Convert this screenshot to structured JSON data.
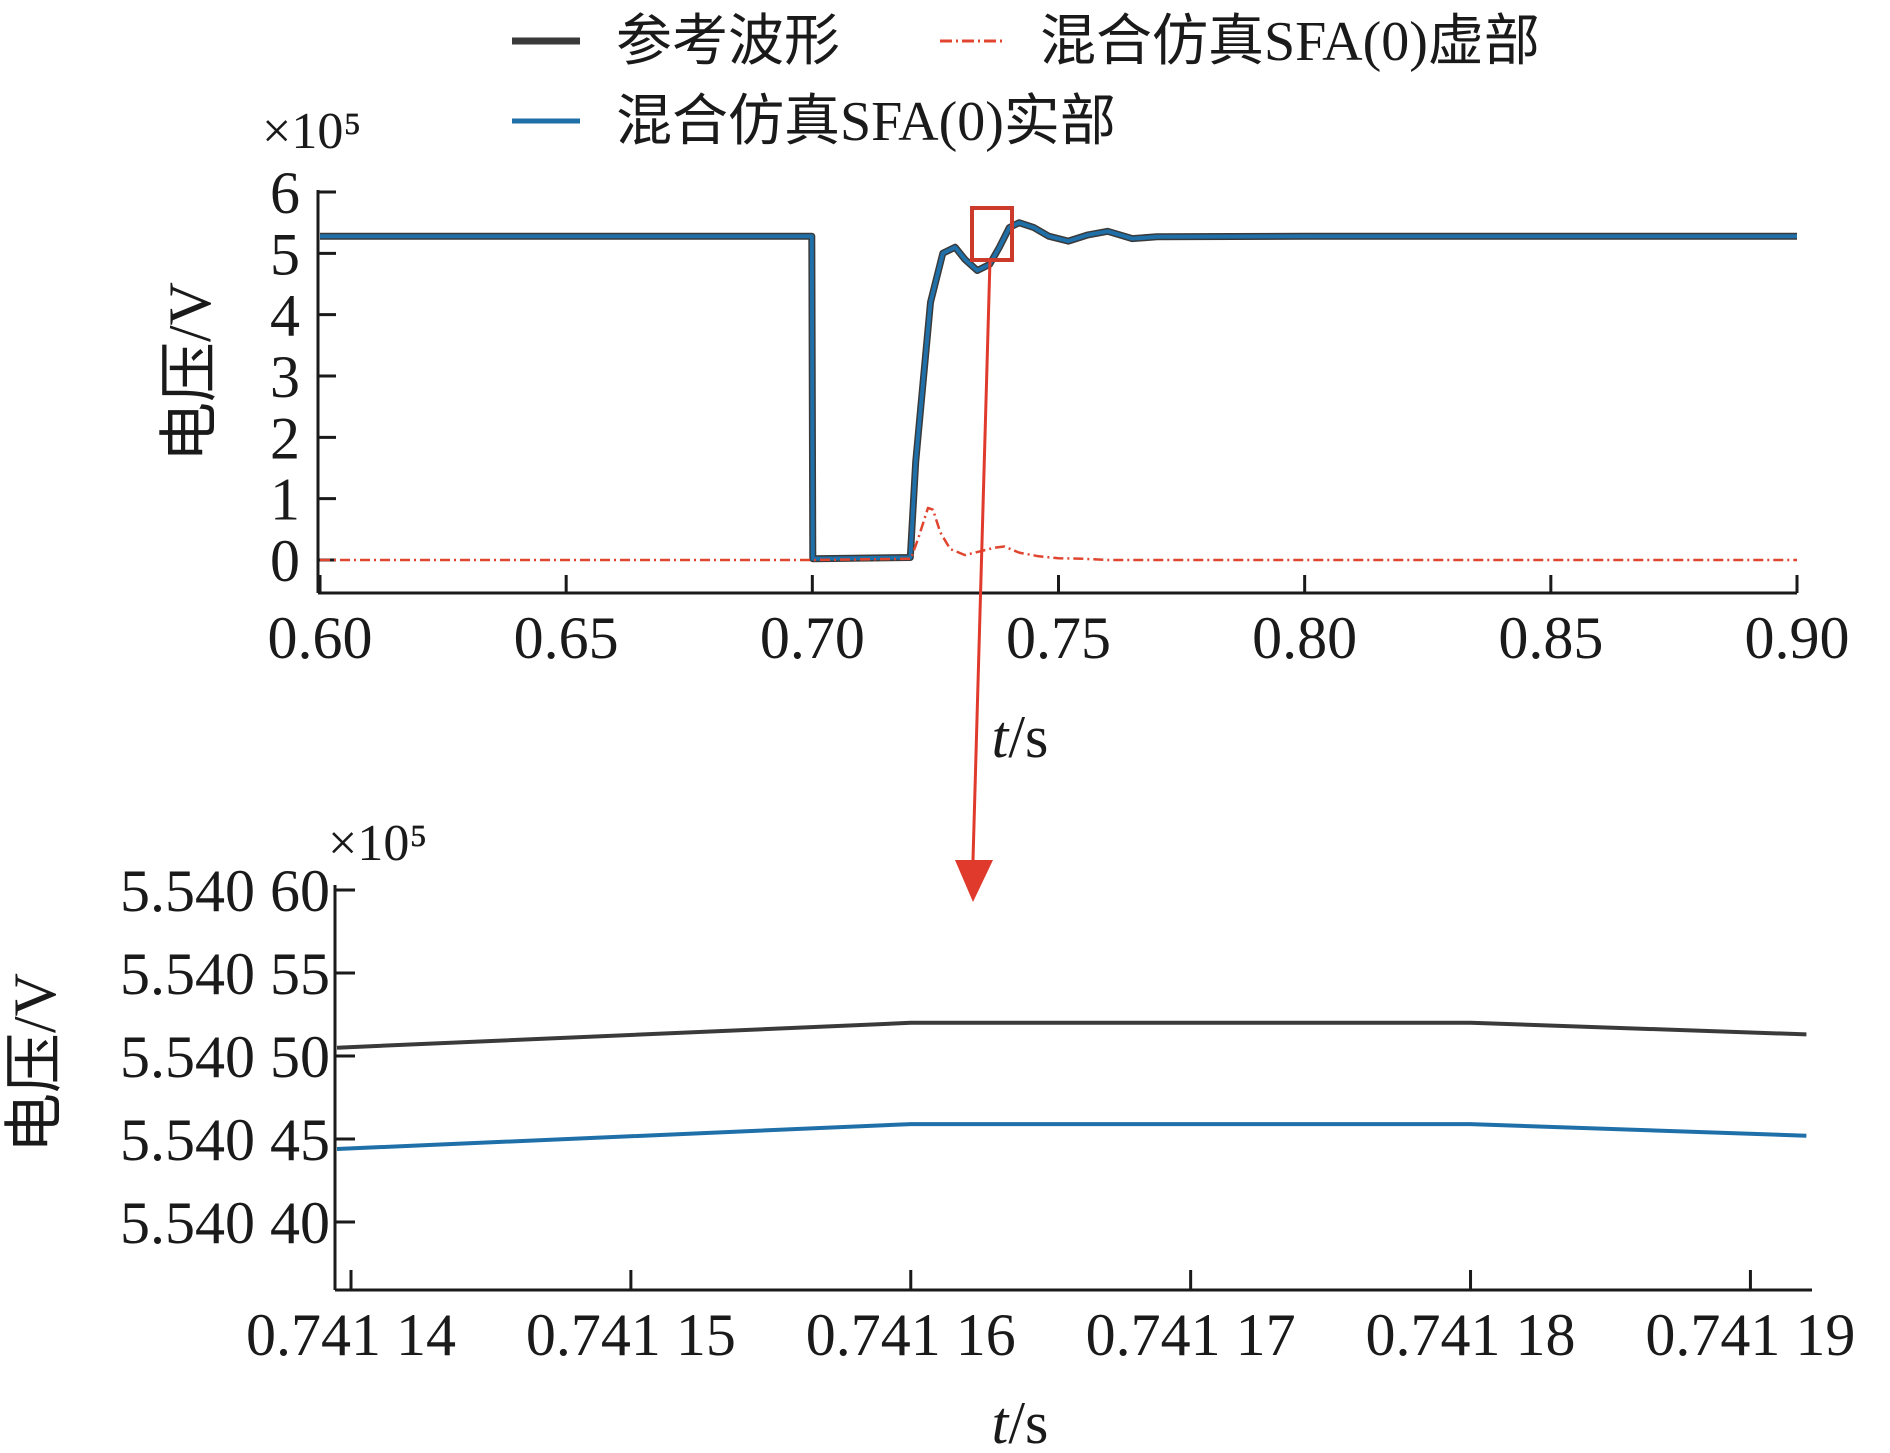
{
  "legend": {
    "entries": [
      {
        "label": "参考波形",
        "color": "#3a3a3a",
        "style": "solid"
      },
      {
        "label": "混合仿真SFA(0)虚部",
        "color": "#e0462f",
        "style": "dashdot"
      },
      {
        "label": "混合仿真SFA(0)实部",
        "color": "#1f6fa8",
        "style": "solid"
      }
    ]
  },
  "colors": {
    "reference": "#3a3a3a",
    "imag": "#e0462f",
    "real": "#1f6fa8",
    "zoom_marker": "#cc3a2c",
    "arrow": "#e03a2c"
  },
  "chart_data": [
    {
      "type": "line",
      "panel": "top",
      "title": "",
      "xlabel": "t/s",
      "ylabel": "电压/V",
      "y_multiplier": "×10⁵",
      "xlim": [
        0.6,
        0.9
      ],
      "ylim": [
        -0.5,
        6
      ],
      "xticks": [
        "0.60",
        "0.65",
        "0.70",
        "0.75",
        "0.80",
        "0.85",
        "0.90"
      ],
      "yticks": [
        "0",
        "1",
        "2",
        "3",
        "4",
        "5",
        "6"
      ],
      "grid": false,
      "legend_position": "top",
      "series": [
        {
          "name": "参考波形",
          "color": "#3a3a3a",
          "x": [
            0.6,
            0.6999,
            0.7001,
            0.7199,
            0.721,
            0.724,
            0.7265,
            0.729,
            0.731,
            0.7335,
            0.736,
            0.738,
            0.74,
            0.742,
            0.745,
            0.748,
            0.752,
            0.756,
            0.76,
            0.765,
            0.77,
            0.8,
            0.85,
            0.9
          ],
          "y": [
            5.28,
            5.28,
            0.02,
            0.04,
            1.6,
            4.2,
            5.0,
            5.1,
            4.9,
            4.72,
            4.82,
            5.1,
            5.42,
            5.5,
            5.42,
            5.28,
            5.2,
            5.3,
            5.36,
            5.24,
            5.27,
            5.28,
            5.28,
            5.28
          ]
        },
        {
          "name": "混合仿真SFA(0)实部",
          "color": "#1f6fa8",
          "x": [
            0.6,
            0.6999,
            0.7001,
            0.7199,
            0.721,
            0.724,
            0.7265,
            0.729,
            0.731,
            0.7335,
            0.736,
            0.738,
            0.74,
            0.742,
            0.745,
            0.748,
            0.752,
            0.756,
            0.76,
            0.765,
            0.77,
            0.8,
            0.85,
            0.9
          ],
          "y": [
            5.28,
            5.28,
            0.02,
            0.04,
            1.6,
            4.2,
            5.0,
            5.1,
            4.9,
            4.72,
            4.82,
            5.1,
            5.42,
            5.5,
            5.42,
            5.28,
            5.2,
            5.3,
            5.36,
            5.24,
            5.27,
            5.28,
            5.28,
            5.28
          ]
        },
        {
          "name": "混合仿真SFA(0)虚部",
          "color": "#e0462f",
          "x": [
            0.6,
            0.7,
            0.72,
            0.7215,
            0.7235,
            0.7245,
            0.726,
            0.728,
            0.731,
            0.734,
            0.737,
            0.739,
            0.742,
            0.746,
            0.75,
            0.755,
            0.76,
            0.8,
            0.9
          ],
          "y": [
            0.0,
            0.0,
            0.02,
            0.35,
            0.85,
            0.82,
            0.45,
            0.18,
            0.08,
            0.14,
            0.2,
            0.22,
            0.12,
            0.06,
            0.03,
            0.02,
            0.0,
            0.0,
            0.0
          ]
        }
      ]
    },
    {
      "type": "line",
      "panel": "bottom",
      "title": "",
      "xlabel": "t/s",
      "ylabel": "电压/V",
      "y_multiplier": "×10⁵",
      "xlim": [
        0.7411395,
        0.7411922
      ],
      "ylim": [
        5.540355,
        5.5406
      ],
      "xticks": [
        "0.741 14",
        "0.741 15",
        "0.741 16",
        "0.741 17",
        "0.741 18",
        "0.741 19"
      ],
      "yticks": [
        "5.540 40",
        "5.540 45",
        "5.540 50",
        "5.540 55",
        "5.540 60"
      ],
      "grid": false,
      "series": [
        {
          "name": "参考波形",
          "color": "#3a3a3a",
          "x": [
            0.7411395,
            0.74116,
            0.74118,
            0.741192
          ],
          "y": [
            5.540505,
            5.54052,
            5.54052,
            5.540513
          ]
        },
        {
          "name": "混合仿真SFA(0)实部",
          "color": "#1f6fa8",
          "x": [
            0.7411395,
            0.74116,
            0.74118,
            0.741192
          ],
          "y": [
            5.540444,
            5.540459,
            5.540459,
            5.540452
          ]
        }
      ]
    }
  ]
}
